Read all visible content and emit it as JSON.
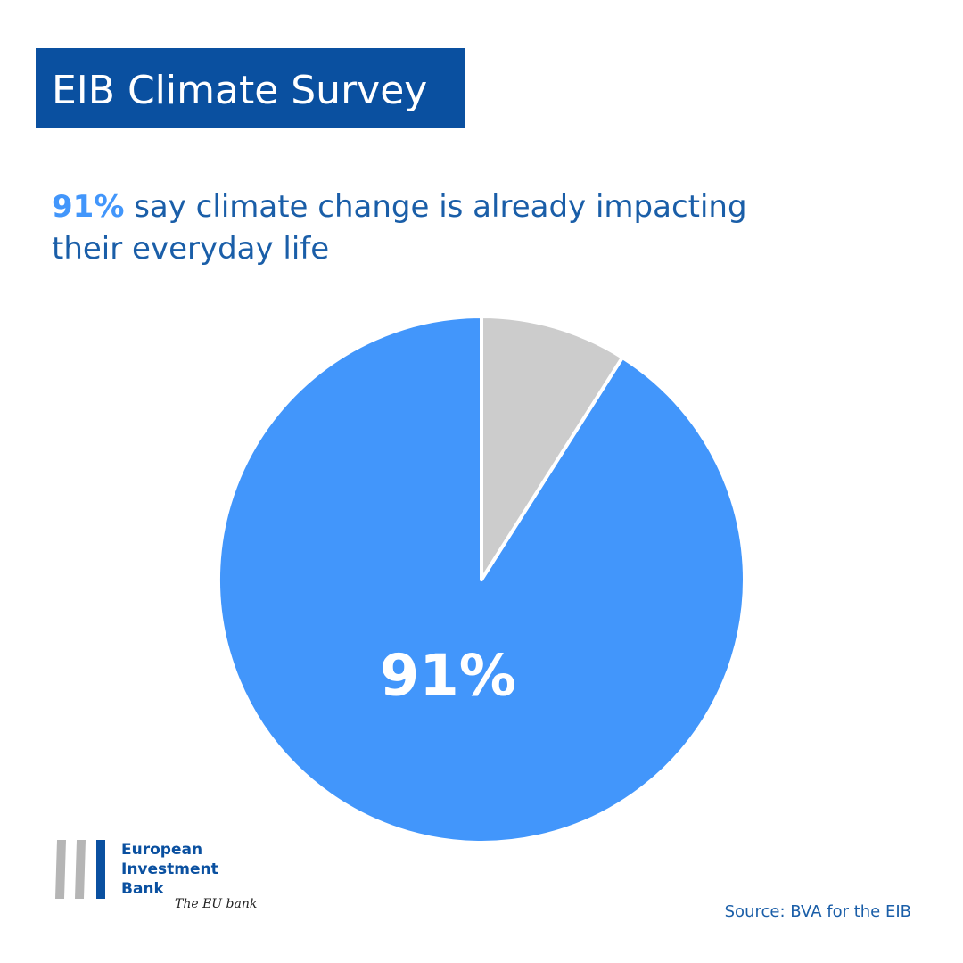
{
  "chart_data": {
    "type": "pie",
    "title": "EIB Climate Survey",
    "subtitle_highlight": "91%",
    "subtitle_lines": [
      "say climate change is already impacting",
      "their everyday life"
    ],
    "values": [
      91,
      9
    ],
    "value_labels": [
      "91%",
      null
    ],
    "colors": [
      "#4296fb",
      "#cccccc"
    ],
    "source": "Source: BVA for the EIB",
    "logo": {
      "lines": [
        "European",
        "Investment",
        "Bank"
      ],
      "tagline": "The EU bank"
    }
  }
}
